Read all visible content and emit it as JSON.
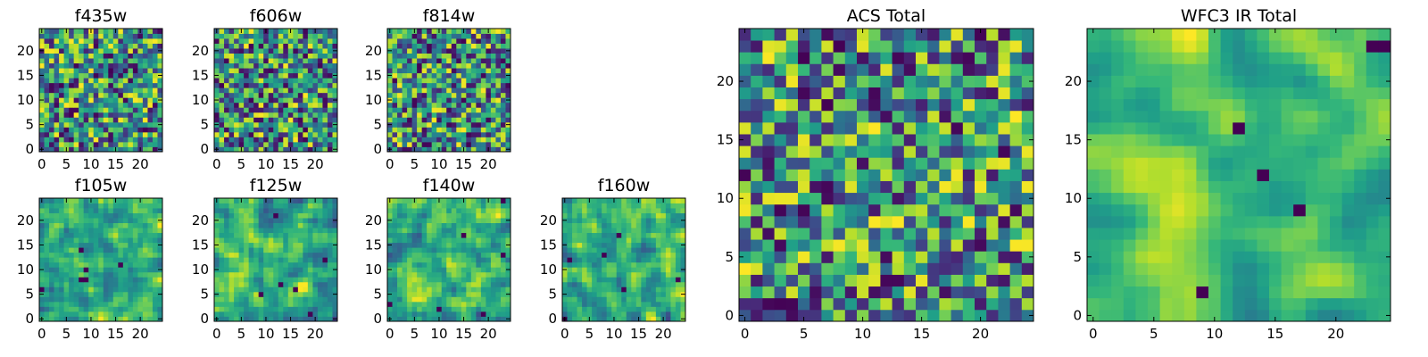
{
  "chart_data": [
    {
      "type": "heatmap",
      "title": "f435w",
      "colormap": "viridis",
      "seed": 11,
      "smooth": 0,
      "grid_size": [
        25,
        25
      ],
      "xticks": [
        0,
        5,
        10,
        15,
        20
      ],
      "yticks": [
        0,
        5,
        10,
        15,
        20
      ],
      "xlim": [
        -0.5,
        24.5
      ],
      "ylim": [
        -0.5,
        24.5
      ],
      "grid": false
    },
    {
      "type": "heatmap",
      "title": "f606w",
      "colormap": "viridis",
      "seed": 23,
      "smooth": 0,
      "grid_size": [
        25,
        25
      ],
      "xticks": [
        0,
        5,
        10,
        15,
        20
      ],
      "yticks": [
        0,
        5,
        10,
        15,
        20
      ],
      "xlim": [
        -0.5,
        24.5
      ],
      "ylim": [
        -0.5,
        24.5
      ],
      "grid": false
    },
    {
      "type": "heatmap",
      "title": "f814w",
      "colormap": "viridis",
      "seed": 37,
      "smooth": 0,
      "grid_size": [
        25,
        25
      ],
      "xticks": [
        0,
        5,
        10,
        15,
        20
      ],
      "yticks": [
        0,
        5,
        10,
        15,
        20
      ],
      "xlim": [
        -0.5,
        24.5
      ],
      "ylim": [
        -0.5,
        24.5
      ],
      "grid": false
    },
    {
      "type": "heatmap",
      "title": "f105w",
      "colormap": "viridis",
      "seed": 41,
      "smooth": 1,
      "grid_size": [
        25,
        25
      ],
      "xticks": [
        0,
        5,
        10,
        15,
        20
      ],
      "yticks": [
        0,
        5,
        10,
        15,
        20
      ],
      "xlim": [
        -0.5,
        24.5
      ],
      "ylim": [
        -0.5,
        24.5
      ],
      "grid": false
    },
    {
      "type": "heatmap",
      "title": "f125w",
      "colormap": "viridis",
      "seed": 53,
      "smooth": 1,
      "grid_size": [
        25,
        25
      ],
      "xticks": [
        0,
        5,
        10,
        15,
        20
      ],
      "yticks": [
        0,
        5,
        10,
        15,
        20
      ],
      "xlim": [
        -0.5,
        24.5
      ],
      "ylim": [
        -0.5,
        24.5
      ],
      "grid": false
    },
    {
      "type": "heatmap",
      "title": "f140w",
      "colormap": "viridis",
      "seed": 67,
      "smooth": 1,
      "grid_size": [
        25,
        25
      ],
      "xticks": [
        0,
        5,
        10,
        15,
        20
      ],
      "yticks": [
        0,
        5,
        10,
        15,
        20
      ],
      "xlim": [
        -0.5,
        24.5
      ],
      "ylim": [
        -0.5,
        24.5
      ],
      "grid": false
    },
    {
      "type": "heatmap",
      "title": "f160w",
      "colormap": "viridis",
      "seed": 79,
      "smooth": 1,
      "grid_size": [
        25,
        25
      ],
      "xticks": [
        0,
        5,
        10,
        15,
        20
      ],
      "yticks": [
        0,
        5,
        10,
        15,
        20
      ],
      "xlim": [
        -0.5,
        24.5
      ],
      "ylim": [
        -0.5,
        24.5
      ],
      "grid": false
    },
    {
      "type": "heatmap",
      "title": "ACS Total",
      "colormap": "viridis",
      "seed": 97,
      "smooth": 0,
      "grid_size": [
        25,
        25
      ],
      "xticks": [
        0,
        5,
        10,
        15,
        20
      ],
      "yticks": [
        0,
        5,
        10,
        15,
        20
      ],
      "xlim": [
        -0.5,
        24.5
      ],
      "ylim": [
        -0.5,
        24.5
      ],
      "grid": false
    },
    {
      "type": "heatmap",
      "title": "WFC3 IR Total",
      "colormap": "viridis",
      "seed": 101,
      "smooth": 2,
      "grid_size": [
        25,
        25
      ],
      "xticks": [
        0,
        5,
        10,
        15,
        20
      ],
      "yticks": [
        0,
        5,
        10,
        15,
        20
      ],
      "xlim": [
        -0.5,
        24.5
      ],
      "ylim": [
        -0.5,
        24.5
      ],
      "grid": false
    }
  ]
}
